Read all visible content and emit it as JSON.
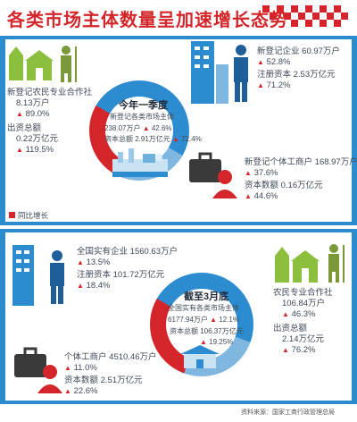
{
  "header": {
    "title": "各类市场主体数量呈加速增长态势"
  },
  "legend": {
    "label": "同比增长"
  },
  "section1": {
    "center": {
      "title": "今年一季度",
      "subtitle": "新登记各类市场主体",
      "count": "238.07万户",
      "count_growth": "42.6%",
      "capital": "资本总额 2.91万亿元",
      "capital_growth": "72.4%"
    },
    "coop": {
      "label": "新登记农民专业合作社",
      "count": "8.13万户",
      "count_growth": "89.0%",
      "capital_label": "出资总额",
      "capital": "0.22万亿元",
      "capital_growth": "119.5%"
    },
    "enterprise": {
      "label": "新登记企业",
      "count": "60.97万户",
      "count_growth": "52.8%",
      "capital": "注册资本 2.53万亿元",
      "capital_growth": "71.2%"
    },
    "individual": {
      "label": "新登记个体工商户",
      "count": "168.97万户",
      "count_growth": "37.6%",
      "capital": "资本数额 0.16万亿元",
      "capital_growth": "44.6%"
    }
  },
  "section2": {
    "center": {
      "title": "截至3月底",
      "subtitle": "全国实有各类市场主体",
      "count": "6177.94万户",
      "count_growth": "12.1%",
      "capital": "资本总额 106.37万亿元",
      "capital_growth": "19.25%"
    },
    "enterprise": {
      "label": "全国实有企业",
      "count": "1560.63万户",
      "count_growth": "13.5%",
      "capital": "注册资本 101.72万亿元",
      "capital_growth": "18.4%"
    },
    "coop": {
      "label": "农民专业合作社",
      "count": "106.84万户",
      "count_growth": "46.3%",
      "capital_label": "出资总额",
      "capital": "2.14万亿元",
      "capital_growth": "76.2%"
    },
    "individual": {
      "label": "个体工商户",
      "count": "4510.46万户",
      "count_growth": "11.0%",
      "capital": "资本数额 2.51万亿元",
      "capital_growth": "22.6%"
    }
  },
  "footer": {
    "source": "资料来源：国家工商行政管理总局"
  },
  "colors": {
    "accent_red": "#d4262a",
    "blue": "#2c8ccf",
    "light_blue": "#7fb7e0",
    "green": "#8dbf3f"
  }
}
